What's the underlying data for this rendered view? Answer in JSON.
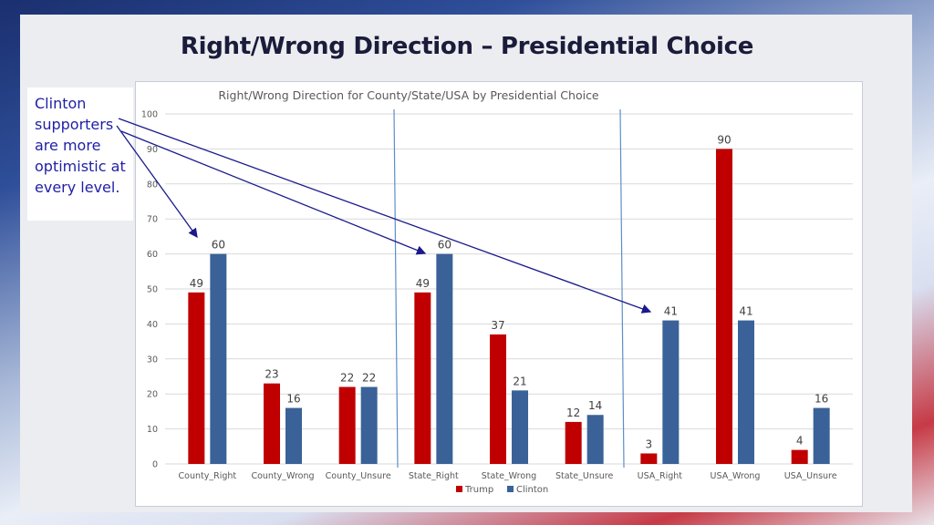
{
  "slide": {
    "title": "Right/Wrong Direction – Presidential Choice",
    "callout_text": "Clinton supporters are more optimistic at every level."
  },
  "colors": {
    "trump": "#c00000",
    "clinton": "#3a6298",
    "arrow": "#1a1a8c",
    "divider": "#5b8fc9"
  },
  "chart_data": {
    "type": "bar",
    "title": "Right/Wrong Direction for County/State/USA by Presidential Choice",
    "categories": [
      "County_Right",
      "County_Wrong",
      "County_Unsure",
      "State_Right",
      "State_Wrong",
      "State_Unsure",
      "USA_Right",
      "USA_Wrong",
      "USA_Unsure"
    ],
    "series": [
      {
        "name": "Trump",
        "values": [
          49,
          23,
          22,
          49,
          37,
          12,
          3,
          90,
          4
        ]
      },
      {
        "name": "Clinton",
        "values": [
          60,
          16,
          22,
          60,
          21,
          14,
          41,
          41,
          16
        ]
      }
    ],
    "ylim": [
      0,
      100
    ],
    "yticks": [
      0,
      10,
      20,
      30,
      40,
      50,
      60,
      70,
      80,
      90,
      100
    ],
    "grid": true,
    "legend": "bottom",
    "data_labels": true
  }
}
